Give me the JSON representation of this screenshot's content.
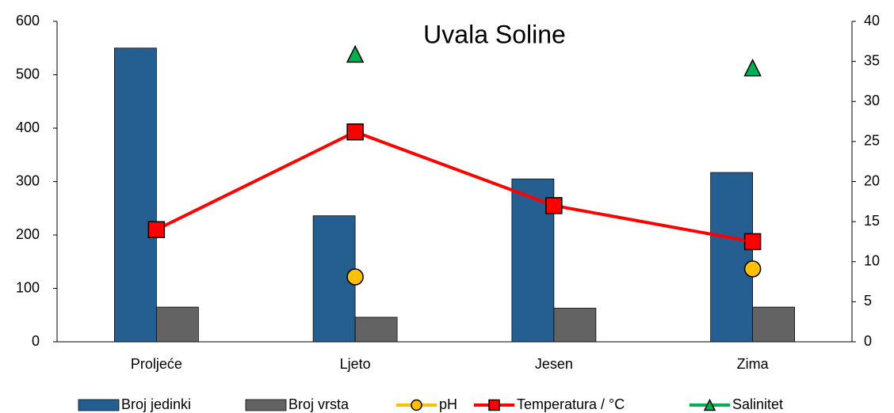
{
  "chart_data": {
    "type": "bar",
    "title": "Uvala Soline",
    "categories": [
      "Proljeće",
      "Ljeto",
      "Jesen",
      "Zima"
    ],
    "ylim": [
      0,
      600
    ],
    "yticks": [
      0,
      100,
      200,
      300,
      400,
      500,
      600
    ],
    "y2lim": [
      0,
      40
    ],
    "y2ticks": [
      0,
      5,
      10,
      15,
      20,
      25,
      30,
      35,
      40
    ],
    "grid": false,
    "legend": "bottom",
    "series": [
      {
        "name": "Broj jedinki",
        "type": "bar",
        "color": "#255e91",
        "values": [
          550,
          236,
          305,
          317
        ]
      },
      {
        "name": "Broj vrsta",
        "type": "bar",
        "color": "#636363",
        "values": [
          65,
          46,
          63,
          65
        ]
      },
      {
        "name": "pH",
        "type": "line",
        "axis": "y2",
        "marker": "circle",
        "color": "#ffc000",
        "values": [
          null,
          8.1,
          null,
          9.1
        ]
      },
      {
        "name": "Temperatura / °C",
        "type": "line",
        "axis": "y2",
        "marker": "square",
        "color": "#ff0000",
        "values": [
          14.0,
          26.2,
          17.0,
          12.5
        ]
      },
      {
        "name": "Salinitet",
        "type": "line",
        "axis": "y2",
        "marker": "triangle",
        "color": "#00b050",
        "values": [
          null,
          35.9,
          null,
          34.2
        ]
      }
    ]
  }
}
